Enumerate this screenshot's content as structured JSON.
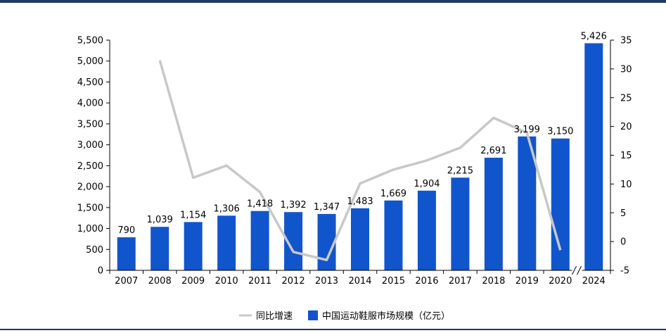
{
  "chart_data": {
    "type": "bar",
    "categories": [
      "2007",
      "2008",
      "2009",
      "2010",
      "2011",
      "2012",
      "2013",
      "2014",
      "2015",
      "2016",
      "2017",
      "2018",
      "2019",
      "2020",
      "2024"
    ],
    "series": [
      {
        "name": "中国运动鞋服市场规模（亿元）",
        "type": "bar",
        "axis": "left",
        "color": "#1155cc",
        "values": [
          790,
          1039,
          1154,
          1306,
          1418,
          1392,
          1347,
          1483,
          1669,
          1904,
          2215,
          2691,
          3199,
          3150,
          5426
        ],
        "labels": [
          "790",
          "1,039",
          "1,154",
          "1,306",
          "1,418",
          "1,392",
          "1,347",
          "1,483",
          "1,669",
          "1,904",
          "2,215",
          "2,691",
          "3,199",
          "3,150",
          "5,426"
        ]
      },
      {
        "name": "同比增速",
        "type": "line",
        "axis": "right",
        "color": "#c8c8c8",
        "values": [
          null,
          31.5,
          11.1,
          13.2,
          8.6,
          -1.8,
          -3.2,
          10.1,
          12.5,
          14.1,
          16.3,
          21.5,
          18.9,
          -1.5,
          null
        ]
      }
    ],
    "y_left": {
      "range": [
        0,
        5500
      ],
      "ticks": [
        "0",
        "500",
        "1,000",
        "1,500",
        "2,000",
        "2,500",
        "3,000",
        "3,500",
        "4,000",
        "4,500",
        "5,000",
        "5,500"
      ]
    },
    "y_right": {
      "range": [
        -5,
        35
      ],
      "ticks": [
        "-5",
        "0",
        "5",
        "10",
        "15",
        "20",
        "25",
        "30",
        "35"
      ]
    },
    "axis_break_between": [
      "2020",
      "2024"
    ],
    "legend": {
      "position": "bottom",
      "entries": [
        "同比增速",
        "中国运动鞋服市场规模（亿元）"
      ]
    },
    "grid": false
  }
}
